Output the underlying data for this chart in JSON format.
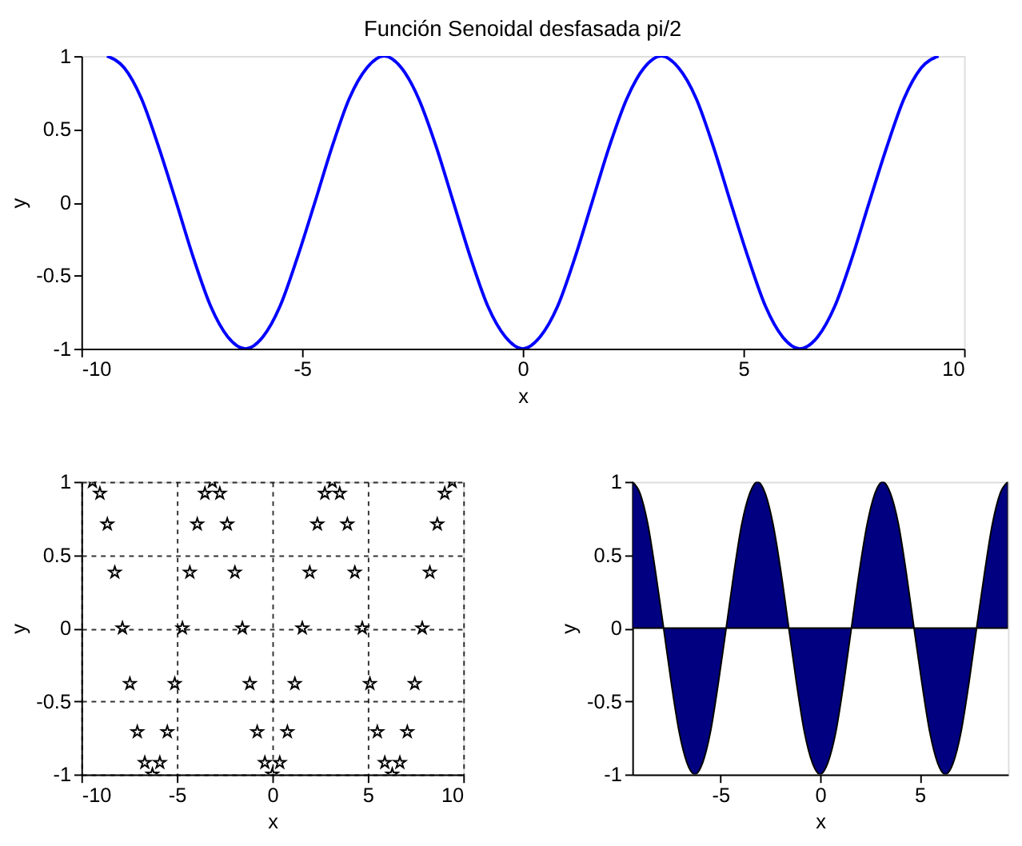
{
  "chart_data": [
    {
      "type": "line",
      "title": "Función Senoidal desfasada pi/2",
      "xlabel": "x",
      "ylabel": "y",
      "color": "#0000ff",
      "line_style": "solid",
      "marker": "none",
      "grid": false,
      "x": [
        -9.42,
        -9.03,
        -8.64,
        -8.25,
        -7.85,
        -7.46,
        -7.07,
        -6.68,
        -6.28,
        -5.89,
        -5.5,
        -5.11,
        -4.71,
        -4.32,
        -3.93,
        -3.53,
        -3.14,
        -2.75,
        -2.36,
        -1.96,
        -1.57,
        -1.18,
        -0.79,
        -0.39,
        0,
        0.39,
        0.79,
        1.18,
        1.57,
        1.96,
        2.36,
        2.75,
        3.14,
        3.53,
        3.93,
        4.32,
        4.71,
        5.11,
        5.5,
        5.89,
        6.28,
        6.68,
        7.07,
        7.46,
        7.85,
        8.25,
        8.64,
        9.03,
        9.42
      ],
      "values": [
        1,
        0.92,
        0.71,
        0.38,
        0,
        -0.38,
        -0.71,
        -0.92,
        -1,
        -0.92,
        -0.71,
        -0.38,
        0,
        0.38,
        0.71,
        0.92,
        1,
        0.92,
        0.71,
        0.38,
        0,
        -0.38,
        -0.71,
        -0.92,
        -1,
        -0.92,
        -0.71,
        -0.38,
        0,
        0.38,
        0.71,
        0.92,
        1,
        0.92,
        0.71,
        0.38,
        0,
        -0.38,
        -0.71,
        -0.92,
        -1,
        -0.92,
        -0.71,
        -0.38,
        0,
        0.38,
        0.71,
        0.92,
        1
      ],
      "xlim": [
        -10,
        10
      ],
      "xticks": [
        -10,
        -5,
        0,
        5,
        10
      ],
      "ylim": [
        -1,
        1
      ],
      "yticks": [
        -1,
        -0.5,
        0,
        0.5,
        1
      ]
    },
    {
      "type": "scatter",
      "xlabel": "x",
      "ylabel": "y",
      "color": "#000000",
      "marker": "star",
      "grid": true,
      "x": [
        -9.42,
        -9.03,
        -8.64,
        -8.25,
        -7.85,
        -7.46,
        -7.07,
        -6.68,
        -6.28,
        -5.89,
        -5.5,
        -5.11,
        -4.71,
        -4.32,
        -3.93,
        -3.53,
        -3.14,
        -2.75,
        -2.36,
        -1.96,
        -1.57,
        -1.18,
        -0.79,
        -0.39,
        0,
        0.39,
        0.79,
        1.18,
        1.57,
        1.96,
        2.36,
        2.75,
        3.14,
        3.53,
        3.93,
        4.32,
        4.71,
        5.11,
        5.5,
        5.89,
        6.28,
        6.68,
        7.07,
        7.46,
        7.85,
        8.25,
        8.64,
        9.03,
        9.42
      ],
      "values": [
        1,
        0.92,
        0.71,
        0.38,
        0,
        -0.38,
        -0.71,
        -0.92,
        -1,
        -0.92,
        -0.71,
        -0.38,
        0,
        0.38,
        0.71,
        0.92,
        1,
        0.92,
        0.71,
        0.38,
        0,
        -0.38,
        -0.71,
        -0.92,
        -1,
        -0.92,
        -0.71,
        -0.38,
        0,
        0.38,
        0.71,
        0.92,
        1,
        0.92,
        0.71,
        0.38,
        0,
        -0.38,
        -0.71,
        -0.92,
        -1,
        -0.92,
        -0.71,
        -0.38,
        0,
        0.38,
        0.71,
        0.92,
        1
      ],
      "xlim": [
        -10,
        10
      ],
      "xticks": [
        -10,
        -5,
        0,
        5,
        10
      ],
      "ylim": [
        -1,
        1
      ],
      "yticks": [
        -1,
        -0.5,
        0,
        0.5,
        1
      ]
    },
    {
      "type": "area",
      "xlabel": "x",
      "ylabel": "y",
      "color": "#000080",
      "grid": false,
      "x": [
        -9.42,
        -9.03,
        -8.64,
        -8.25,
        -7.85,
        -7.46,
        -7.07,
        -6.68,
        -6.28,
        -5.89,
        -5.5,
        -5.11,
        -4.71,
        -4.32,
        -3.93,
        -3.53,
        -3.14,
        -2.75,
        -2.36,
        -1.96,
        -1.57,
        -1.18,
        -0.79,
        -0.39,
        0,
        0.39,
        0.79,
        1.18,
        1.57,
        1.96,
        2.36,
        2.75,
        3.14,
        3.53,
        3.93,
        4.32,
        4.71,
        5.11,
        5.5,
        5.89,
        6.28,
        6.68,
        7.07,
        7.46,
        7.85,
        8.25,
        8.64,
        9.03,
        9.42
      ],
      "values": [
        1,
        0.92,
        0.71,
        0.38,
        0,
        -0.38,
        -0.71,
        -0.92,
        -1,
        -0.92,
        -0.71,
        -0.38,
        0,
        0.38,
        0.71,
        0.92,
        1,
        0.92,
        0.71,
        0.38,
        0,
        -0.38,
        -0.71,
        -0.92,
        -1,
        -0.92,
        -0.71,
        -0.38,
        0,
        0.38,
        0.71,
        0.92,
        1,
        0.92,
        0.71,
        0.38,
        0,
        -0.38,
        -0.71,
        -0.92,
        -1,
        -0.92,
        -0.71,
        -0.38,
        0,
        0.38,
        0.71,
        0.92,
        1
      ],
      "xlim": [
        -9.42,
        9.42
      ],
      "xticks": [
        -5,
        0,
        5
      ],
      "ylim": [
        -1,
        1
      ],
      "yticks": [
        -1,
        -0.5,
        0,
        0.5,
        1
      ]
    }
  ]
}
